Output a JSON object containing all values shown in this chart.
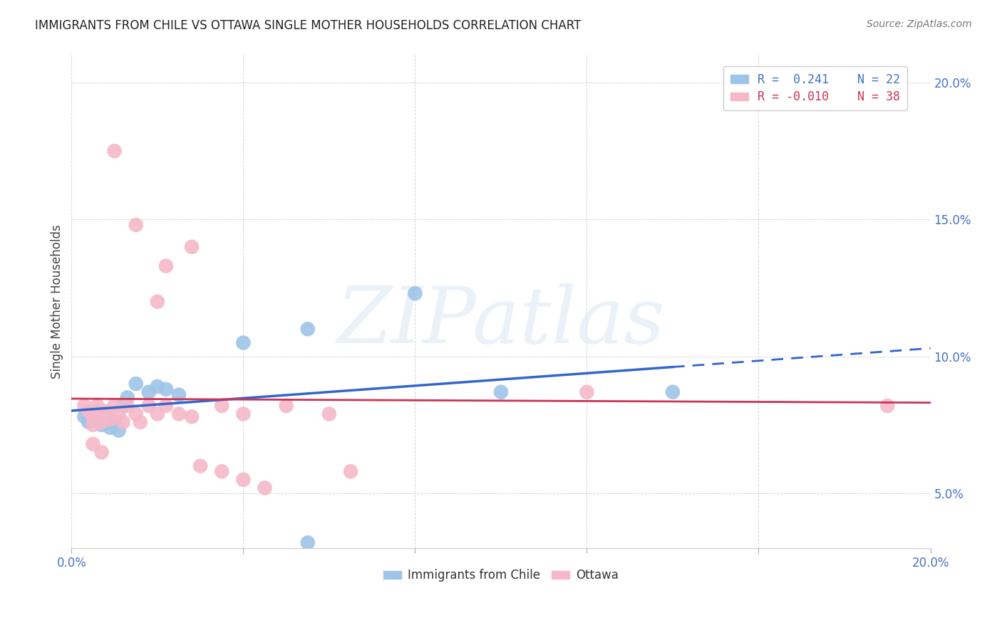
{
  "title": "IMMIGRANTS FROM CHILE VS OTTAWA SINGLE MOTHER HOUSEHOLDS CORRELATION CHART",
  "source": "Source: ZipAtlas.com",
  "ylabel": "Single Mother Households",
  "xlim": [
    0.0,
    0.2
  ],
  "ylim": [
    0.03,
    0.21
  ],
  "blue_R": 0.241,
  "blue_N": 22,
  "pink_R": -0.01,
  "pink_N": 38,
  "blue_color": "#9ec4e8",
  "pink_color": "#f5b8c8",
  "blue_line_color": "#3366cc",
  "pink_line_color": "#cc3355",
  "blue_scatter": [
    [
      0.003,
      0.078
    ],
    [
      0.004,
      0.076
    ],
    [
      0.005,
      0.077
    ],
    [
      0.006,
      0.08
    ],
    [
      0.007,
      0.075
    ],
    [
      0.008,
      0.079
    ],
    [
      0.009,
      0.074
    ],
    [
      0.01,
      0.076
    ],
    [
      0.011,
      0.073
    ],
    [
      0.012,
      0.082
    ],
    [
      0.013,
      0.085
    ],
    [
      0.015,
      0.09
    ],
    [
      0.018,
      0.087
    ],
    [
      0.02,
      0.089
    ],
    [
      0.022,
      0.088
    ],
    [
      0.025,
      0.086
    ],
    [
      0.04,
      0.105
    ],
    [
      0.055,
      0.11
    ],
    [
      0.08,
      0.123
    ],
    [
      0.1,
      0.087
    ],
    [
      0.14,
      0.087
    ],
    [
      0.055,
      0.032
    ]
  ],
  "pink_scatter": [
    [
      0.003,
      0.082
    ],
    [
      0.004,
      0.08
    ],
    [
      0.005,
      0.078
    ],
    [
      0.005,
      0.075
    ],
    [
      0.006,
      0.082
    ],
    [
      0.007,
      0.079
    ],
    [
      0.007,
      0.076
    ],
    [
      0.008,
      0.08
    ],
    [
      0.009,
      0.077
    ],
    [
      0.01,
      0.082
    ],
    [
      0.011,
      0.079
    ],
    [
      0.012,
      0.076
    ],
    [
      0.013,
      0.082
    ],
    [
      0.015,
      0.079
    ],
    [
      0.016,
      0.076
    ],
    [
      0.018,
      0.082
    ],
    [
      0.02,
      0.079
    ],
    [
      0.022,
      0.082
    ],
    [
      0.025,
      0.079
    ],
    [
      0.028,
      0.078
    ],
    [
      0.03,
      0.06
    ],
    [
      0.035,
      0.058
    ],
    [
      0.04,
      0.055
    ],
    [
      0.045,
      0.052
    ],
    [
      0.01,
      0.175
    ],
    [
      0.015,
      0.148
    ],
    [
      0.022,
      0.133
    ],
    [
      0.02,
      0.12
    ],
    [
      0.028,
      0.14
    ],
    [
      0.035,
      0.082
    ],
    [
      0.04,
      0.079
    ],
    [
      0.05,
      0.082
    ],
    [
      0.06,
      0.079
    ],
    [
      0.065,
      0.058
    ],
    [
      0.12,
      0.087
    ],
    [
      0.19,
      0.082
    ],
    [
      0.005,
      0.068
    ],
    [
      0.007,
      0.065
    ]
  ],
  "background_color": "#ffffff",
  "grid_color": "#cccccc",
  "watermark": "ZIPatlas"
}
